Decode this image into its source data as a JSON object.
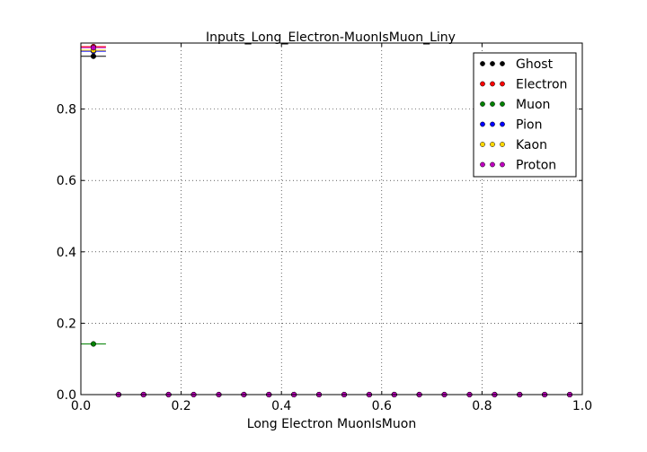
{
  "chart_data": {
    "type": "scatter",
    "title": "Inputs_Long_Electron-MuonIsMuon_Liny",
    "xlabel": "Long Electron MuonIsMuon",
    "ylabel": "",
    "xlim": [
      0.0,
      1.0
    ],
    "ylim": [
      0.0,
      0.985
    ],
    "xticks": [
      0.0,
      0.2,
      0.4,
      0.6,
      0.8,
      1.0
    ],
    "xtick_labels": [
      "0.0",
      "0.2",
      "0.4",
      "0.6",
      "0.8",
      "1.0"
    ],
    "yticks": [
      0.0,
      0.2,
      0.4,
      0.6,
      0.8
    ],
    "ytick_labels": [
      "0.0",
      "0.2",
      "0.4",
      "0.6",
      "0.8"
    ],
    "grid": true,
    "legend_position": "top-right",
    "x": [
      0.025,
      0.075,
      0.125,
      0.175,
      0.225,
      0.275,
      0.325,
      0.375,
      0.425,
      0.475,
      0.525,
      0.575,
      0.625,
      0.675,
      0.725,
      0.775,
      0.825,
      0.875,
      0.925,
      0.975
    ],
    "x_error": 0.025,
    "series": [
      {
        "name": "Ghost",
        "color": "#000000",
        "values": [
          0.948,
          0,
          0,
          0,
          0,
          0,
          0,
          0,
          0,
          0,
          0,
          0,
          0,
          0,
          0,
          0,
          0,
          0,
          0,
          0
        ]
      },
      {
        "name": "Electron",
        "color": "#ff0000",
        "values": [
          0.975,
          0,
          0,
          0,
          0,
          0,
          0,
          0,
          0,
          0,
          0,
          0,
          0,
          0,
          0,
          0,
          0,
          0,
          0,
          0
        ]
      },
      {
        "name": "Muon",
        "color": "#008000",
        "values": [
          0.142,
          0,
          0,
          0,
          0,
          0,
          0,
          0,
          0,
          0,
          0,
          0,
          0,
          0,
          0,
          0,
          0,
          0,
          0,
          0
        ]
      },
      {
        "name": "Pion",
        "color": "#0000ff",
        "values": [
          0.962,
          0,
          0,
          0,
          0,
          0,
          0,
          0,
          0,
          0,
          0,
          0,
          0,
          0,
          0,
          0,
          0,
          0,
          0,
          0
        ]
      },
      {
        "name": "Kaon",
        "color": "#ffd700",
        "values": [
          0.965,
          0,
          0,
          0,
          0,
          0,
          0,
          0,
          0,
          0,
          0,
          0,
          0,
          0,
          0,
          0,
          0,
          0,
          0,
          0
        ]
      },
      {
        "name": "Proton",
        "color": "#bf00bf",
        "values": [
          0.972,
          0,
          0,
          0,
          0,
          0,
          0,
          0,
          0,
          0,
          0,
          0,
          0,
          0,
          0,
          0,
          0,
          0,
          0,
          0
        ]
      }
    ]
  }
}
